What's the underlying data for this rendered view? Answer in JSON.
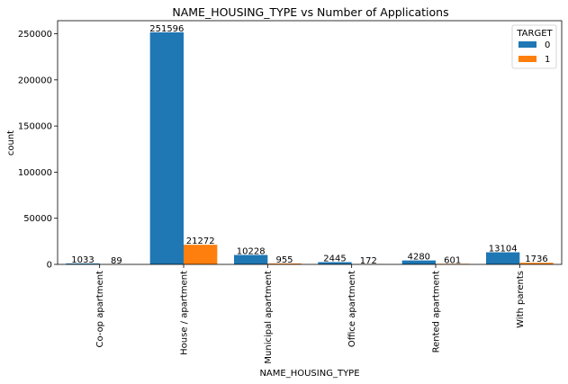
{
  "chart_data": {
    "type": "bar",
    "title": "NAME_HOUSING_TYPE vs Number of Applications",
    "xlabel": "NAME_HOUSING_TYPE",
    "ylabel": "count",
    "categories": [
      "Co-op apartment",
      "House / apartment",
      "Municipal apartment",
      "Office apartment",
      "Rented apartment",
      "With parents"
    ],
    "series": [
      {
        "name": "0",
        "color": "#1f77b4",
        "values": [
          1033,
          251596,
          10228,
          2445,
          4280,
          13104
        ]
      },
      {
        "name": "1",
        "color": "#ff7f0e",
        "values": [
          89,
          21272,
          955,
          172,
          601,
          1736
        ]
      }
    ],
    "data_labels": [
      [
        "1033",
        "251596",
        "10228",
        "2445",
        "4280",
        "13104"
      ],
      [
        "89",
        "21272",
        "955",
        "172",
        "601",
        "1736"
      ]
    ],
    "ylim": [
      0,
      264175
    ],
    "yticks": [
      0,
      50000,
      100000,
      150000,
      200000,
      250000
    ],
    "ytick_labels": [
      "0",
      "50000",
      "100000",
      "150000",
      "200000",
      "250000"
    ],
    "legend": {
      "title": "TARGET",
      "position": "upper right"
    },
    "grid": false
  }
}
